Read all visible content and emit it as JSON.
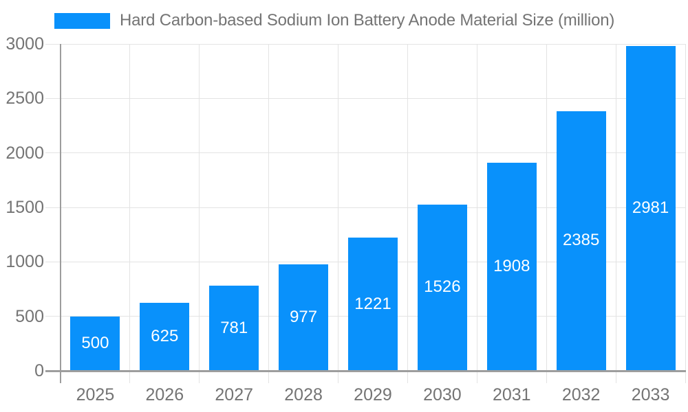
{
  "chart_data": {
    "type": "bar",
    "title": "Hard Carbon-based Sodium Ion Battery Anode Material Size (million)",
    "categories": [
      "2025",
      "2026",
      "2027",
      "2028",
      "2029",
      "2030",
      "2031",
      "2032",
      "2033"
    ],
    "values": [
      500,
      625,
      781,
      977,
      1221,
      1526,
      1908,
      2385,
      2981
    ],
    "xlabel": "",
    "ylabel": "",
    "ylim": [
      0,
      3000
    ],
    "yticks": [
      0,
      500,
      1000,
      1500,
      2000,
      2500,
      3000
    ],
    "grid": true,
    "legend_position": "top-left",
    "bar_value_labels": "inside-center"
  },
  "colors": {
    "bar": "#0991fb",
    "text": "#747474",
    "grid": "#e3e3e3",
    "axis": "#9d9d9d",
    "bar_label": "#ffffff",
    "background": "#ffffff"
  }
}
